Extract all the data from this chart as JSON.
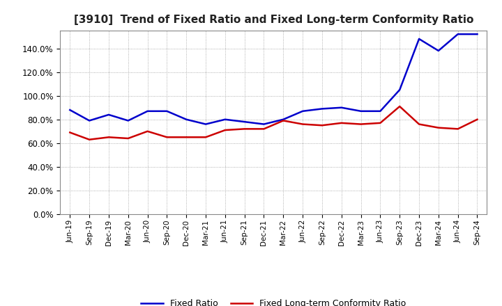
{
  "title": "[3910]  Trend of Fixed Ratio and Fixed Long-term Conformity Ratio",
  "x_labels": [
    "Jun-19",
    "Sep-19",
    "Dec-19",
    "Mar-20",
    "Jun-20",
    "Sep-20",
    "Dec-20",
    "Mar-21",
    "Jun-21",
    "Sep-21",
    "Dec-21",
    "Mar-22",
    "Jun-22",
    "Sep-22",
    "Dec-22",
    "Mar-23",
    "Jun-23",
    "Sep-23",
    "Dec-23",
    "Mar-24",
    "Jun-24",
    "Sep-24"
  ],
  "fixed_ratio": [
    88,
    79,
    84,
    79,
    87,
    87,
    80,
    76,
    80,
    78,
    76,
    80,
    87,
    89,
    90,
    87,
    87,
    105,
    148,
    138,
    152,
    152
  ],
  "fixed_lt_ratio": [
    69,
    63,
    65,
    64,
    70,
    65,
    65,
    65,
    71,
    72,
    72,
    79,
    76,
    75,
    77,
    76,
    77,
    91,
    76,
    73,
    72,
    80
  ],
  "fixed_ratio_color": "#0000cc",
  "fixed_lt_ratio_color": "#cc0000",
  "ylim": [
    0,
    155
  ],
  "yticks": [
    0,
    20,
    40,
    60,
    80,
    100,
    120,
    140
  ],
  "background_color": "#ffffff",
  "grid_color": "#aaaaaa",
  "legend_fixed": "Fixed Ratio",
  "legend_lt": "Fixed Long-term Conformity Ratio"
}
